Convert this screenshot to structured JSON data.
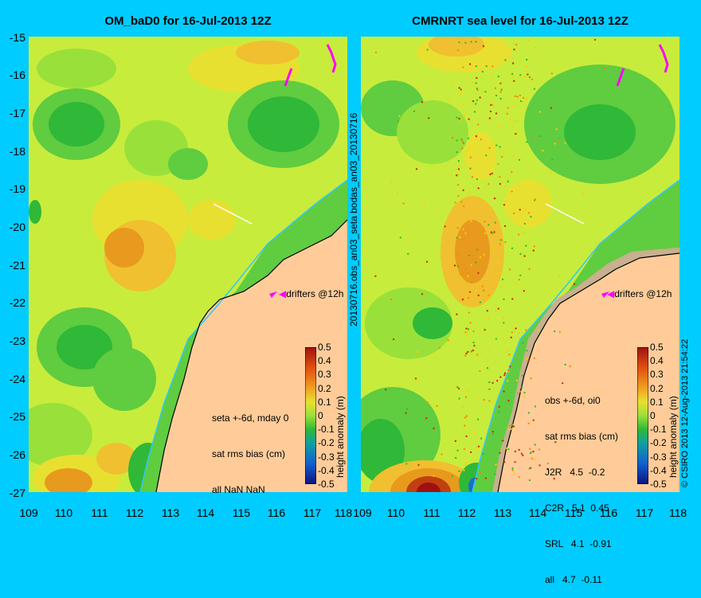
{
  "left": {
    "title": "OM_baD0 for 16-Jul-2013 12Z",
    "stats": [
      "seta +-6d, mday 0",
      "sat rms bias (cm)",
      "all NaN NaN"
    ]
  },
  "right": {
    "title": "CMRNRT sea level  for 16-Jul-2013 12Z",
    "stats": [
      "obs +-6d, oi0",
      "sat rms bias (cm)",
      "J2R   4.5  -0.2",
      "C2R   5.1  0.45",
      "SRL   4.1  -0.91",
      "all   4.7  -0.11"
    ]
  },
  "mid_label": "20130716.obs_an03_seta      bodas_an03_20130716",
  "drifters_label": "drifters @12h",
  "colorbar": {
    "label": "height anomaly (m)",
    "ticks": [
      "0.5",
      "0.4",
      "0.3",
      "0.2",
      "0.1",
      "0",
      "-0.1",
      "-0.2",
      "-0.3",
      "-0.4",
      "-0.5"
    ]
  },
  "y_ticks": [
    "-15",
    "-16",
    "-17",
    "-18",
    "-19",
    "-20",
    "-21",
    "-22",
    "-23",
    "-24",
    "-25",
    "-26",
    "-27"
  ],
  "x_ticks": [
    "109",
    "110",
    "111",
    "112",
    "113",
    "114",
    "115",
    "116",
    "117",
    "118"
  ],
  "copyright": "© CSIRO 2013  12-Aug-2013 21:54:22",
  "colors": {
    "background": "#00ccff",
    "land": "#ffcc99",
    "high": "#e89a1e",
    "low": "#1aa830",
    "mid": "#c8ec3c"
  }
}
